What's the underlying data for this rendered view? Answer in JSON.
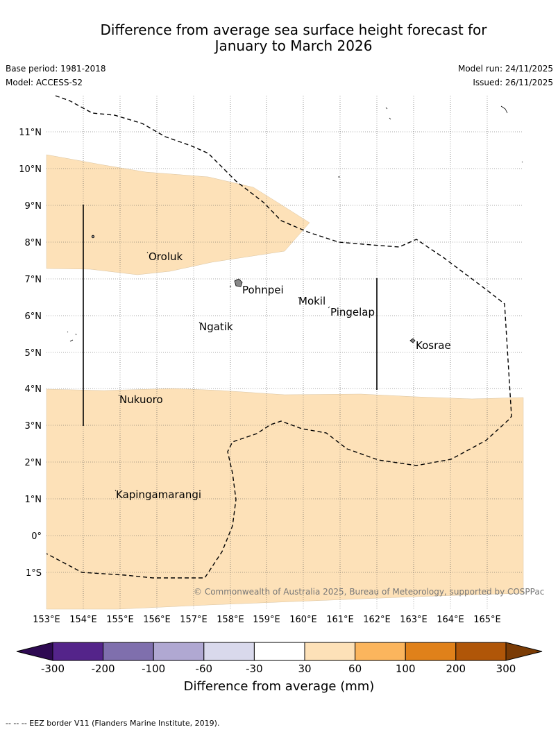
{
  "title": {
    "line1": "Difference from average sea surface height forecast for",
    "line2": "January to March 2026"
  },
  "info": {
    "base_period": "Base period: 1981-2018",
    "model": "Model: ACCESS-S2",
    "model_run": "Model run: 24/11/2025",
    "issued": "Issued: 26/11/2025"
  },
  "map": {
    "lat_labels": [
      "11°N",
      "10°N",
      "9°N",
      "8°N",
      "7°N",
      "6°N",
      "5°N",
      "4°N",
      "3°N",
      "2°N",
      "1°N",
      "0°",
      "1°S"
    ],
    "lon_labels": [
      "153°E",
      "154°E",
      "155°E",
      "156°E",
      "157°E",
      "158°E",
      "159°E",
      "160°E",
      "161°E",
      "162°E",
      "163°E",
      "164°E",
      "165°E"
    ],
    "places": [
      "Oroluk",
      "Pohnpei",
      "Mokil",
      "Pingelap",
      "Ngatik",
      "Kosrae",
      "Nukuoro",
      "Kapingamarangi"
    ],
    "copyright": "© Commonwealth of Australia 2025, Bureau of Meteorology, supported by COSPPac",
    "anomaly_fill_color": "#fde1b8",
    "eez_line_color": "#000000"
  },
  "legend": {
    "ticks": [
      "-300",
      "-200",
      "-100",
      "-60",
      "-30",
      "30",
      "60",
      "100",
      "200",
      "300"
    ],
    "colors": [
      "#2e0a52",
      "#54248a",
      "#7f6fad",
      "#b0a8d2",
      "#d9d9ec",
      "#ffffff",
      "#fde1b8",
      "#fbb55d",
      "#e0811a",
      "#b05608",
      "#7a3b05"
    ],
    "label": "Difference from average (mm)"
  },
  "footer": "--  --  -- EEZ border V11 (Flanders Marine Institute, 2019)."
}
